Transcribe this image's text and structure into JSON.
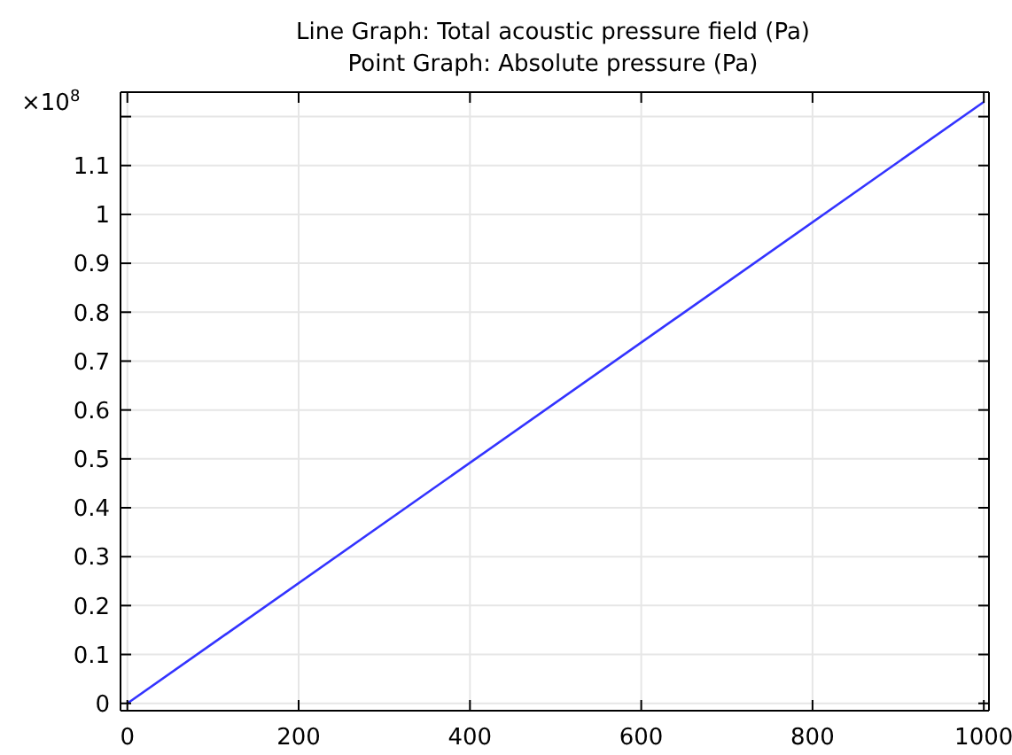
{
  "chart_data": {
    "type": "line",
    "title": "Line Graph: Total acoustic pressure field (Pa)",
    "subtitle": "Point Graph: Absolute pressure (Pa)",
    "ylabel": "×10$^{8}$",
    "x": [
      0,
      1000
    ],
    "series": [
      {
        "color": "#3333ff",
        "values": [
          0,
          1.23
        ]
      }
    ],
    "xlim": [
      -8,
      1006
    ],
    "xticks": [
      0,
      200,
      400,
      600,
      800,
      1000
    ],
    "ylim": [
      -0.015,
      1.25
    ],
    "yticks": [
      0,
      0.1,
      0.2,
      0.3,
      0.4,
      0.5,
      0.6,
      0.7,
      0.8,
      0.9,
      1,
      1.1,
      {
        "value": 1.2,
        "label": null
      }
    ],
    "grid": true,
    "marker": "none",
    "line_style": "solid"
  }
}
